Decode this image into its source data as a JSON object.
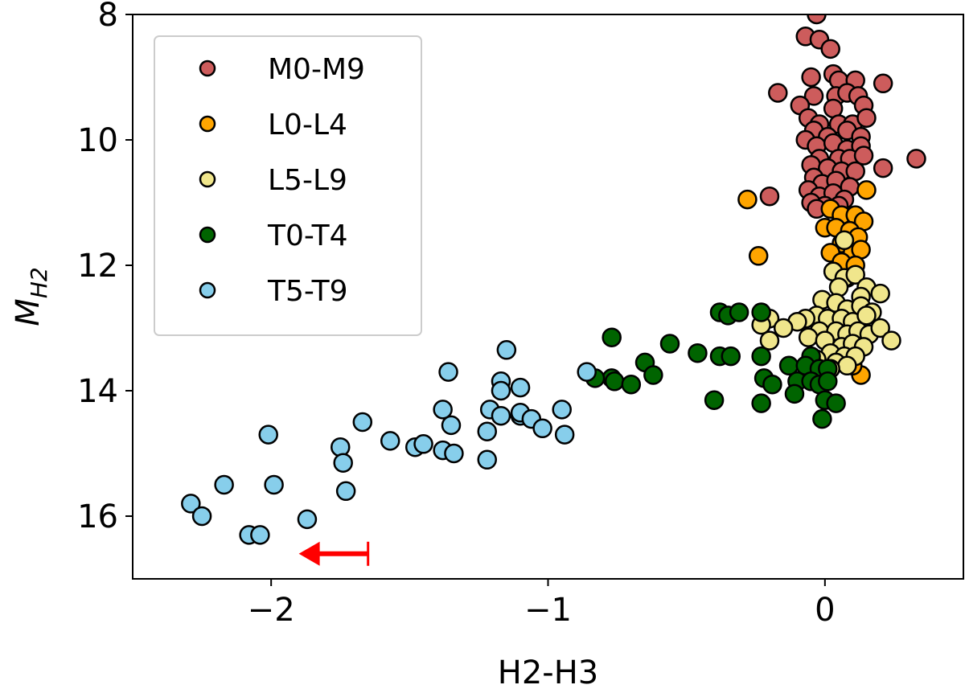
{
  "chart_data": {
    "type": "scatter",
    "title": "",
    "xlabel": "H2-H3",
    "ylabel": "M",
    "ylabel_sub": "H2",
    "xlim": [
      -2.5,
      0.5
    ],
    "ylim": [
      17,
      8
    ],
    "x_ticks": [
      {
        "value": -2,
        "label": "−2"
      },
      {
        "value": -1,
        "label": "−1"
      },
      {
        "value": 0,
        "label": "0"
      }
    ],
    "y_ticks": [
      {
        "value": 8,
        "label": "8"
      },
      {
        "value": 10,
        "label": "10"
      },
      {
        "value": 12,
        "label": "12"
      },
      {
        "value": 14,
        "label": "14"
      },
      {
        "value": 16,
        "label": "16"
      }
    ],
    "legend_position": "top-left",
    "series": [
      {
        "name": "M0-M9",
        "color": "#cd5c5c",
        "points": [
          [
            -0.03,
            8.0
          ],
          [
            -0.07,
            8.35
          ],
          [
            -0.02,
            8.4
          ],
          [
            0.02,
            8.55
          ],
          [
            0.03,
            8.95
          ],
          [
            -0.05,
            9.0
          ],
          [
            0.05,
            9.05
          ],
          [
            0.11,
            9.05
          ],
          [
            0.21,
            9.1
          ],
          [
            -0.17,
            9.25
          ],
          [
            -0.04,
            9.3
          ],
          [
            0.04,
            9.3
          ],
          [
            0.08,
            9.25
          ],
          [
            0.12,
            9.3
          ],
          [
            0.14,
            9.45
          ],
          [
            -0.09,
            9.45
          ],
          [
            0.03,
            9.5
          ],
          [
            -0.06,
            9.65
          ],
          [
            -0.02,
            9.75
          ],
          [
            0.05,
            9.75
          ],
          [
            0.1,
            9.75
          ],
          [
            0.15,
            9.65
          ],
          [
            -0.04,
            9.85
          ],
          [
            0.01,
            9.95
          ],
          [
            0.08,
            9.85
          ],
          [
            0.13,
            9.95
          ],
          [
            -0.07,
            10.0
          ],
          [
            -0.03,
            10.1
          ],
          [
            0.03,
            10.05
          ],
          [
            0.08,
            10.15
          ],
          [
            0.13,
            10.1
          ],
          [
            -0.02,
            10.3
          ],
          [
            0.05,
            10.3
          ],
          [
            0.09,
            10.3
          ],
          [
            0.14,
            10.25
          ],
          [
            0.33,
            10.3
          ],
          [
            0.21,
            10.45
          ],
          [
            -0.05,
            10.4
          ],
          [
            0.01,
            10.45
          ],
          [
            0.06,
            10.5
          ],
          [
            0.11,
            10.5
          ],
          [
            -0.04,
            10.6
          ],
          [
            -0.01,
            10.7
          ],
          [
            0.04,
            10.65
          ],
          [
            0.09,
            10.75
          ],
          [
            -0.06,
            10.8
          ],
          [
            -0.02,
            10.9
          ],
          [
            0.03,
            10.85
          ],
          [
            0.07,
            10.95
          ],
          [
            -0.2,
            10.9
          ],
          [
            -0.05,
            11.0
          ],
          [
            0.0,
            11.05
          ],
          [
            -0.03,
            11.1
          ],
          [
            0.05,
            11.05
          ]
        ]
      },
      {
        "name": "L0-L4",
        "color": "#ffa500",
        "points": [
          [
            -0.28,
            10.95
          ],
          [
            0.15,
            10.8
          ],
          [
            0.02,
            11.1
          ],
          [
            0.06,
            11.2
          ],
          [
            0.11,
            11.2
          ],
          [
            0.14,
            11.3
          ],
          [
            0.0,
            11.4
          ],
          [
            0.04,
            11.4
          ],
          [
            0.09,
            11.45
          ],
          [
            0.12,
            11.55
          ],
          [
            0.06,
            11.65
          ],
          [
            0.02,
            11.8
          ],
          [
            0.1,
            11.8
          ],
          [
            0.13,
            11.75
          ],
          [
            -0.24,
            11.85
          ],
          [
            0.06,
            11.95
          ],
          [
            0.11,
            12.0
          ],
          [
            0.03,
            12.1
          ],
          [
            0.08,
            12.2
          ],
          [
            0.13,
            13.75
          ],
          [
            0.1,
            13.6
          ]
        ]
      },
      {
        "name": "L5-L9",
        "color": "#f0e68c",
        "points": [
          [
            0.07,
            11.6
          ],
          [
            0.03,
            12.1
          ],
          [
            0.07,
            12.2
          ],
          [
            0.11,
            12.15
          ],
          [
            0.05,
            12.35
          ],
          [
            0.15,
            12.35
          ],
          [
            0.2,
            12.45
          ],
          [
            0.13,
            12.5
          ],
          [
            -0.01,
            12.55
          ],
          [
            0.04,
            12.6
          ],
          [
            0.08,
            12.7
          ],
          [
            0.13,
            12.65
          ],
          [
            0.17,
            12.75
          ],
          [
            -0.03,
            12.8
          ],
          [
            0.01,
            12.85
          ],
          [
            0.06,
            12.85
          ],
          [
            0.1,
            12.9
          ],
          [
            0.15,
            12.8
          ],
          [
            -0.07,
            12.85
          ],
          [
            -0.1,
            12.9
          ],
          [
            -0.2,
            12.85
          ],
          [
            -0.23,
            12.95
          ],
          [
            -0.15,
            13.0
          ],
          [
            -0.02,
            13.05
          ],
          [
            0.04,
            13.05
          ],
          [
            0.08,
            13.1
          ],
          [
            0.12,
            13.05
          ],
          [
            0.16,
            13.1
          ],
          [
            0.2,
            13.0
          ],
          [
            0.24,
            13.2
          ],
          [
            -0.06,
            13.15
          ],
          [
            0.0,
            13.2
          ],
          [
            0.06,
            13.3
          ],
          [
            0.1,
            13.25
          ],
          [
            0.14,
            13.3
          ],
          [
            -0.2,
            13.2
          ],
          [
            0.02,
            13.4
          ],
          [
            0.07,
            13.45
          ],
          [
            0.11,
            13.45
          ],
          [
            -0.03,
            13.5
          ],
          [
            0.04,
            13.55
          ],
          [
            0.08,
            13.6
          ],
          [
            -0.04,
            13.6
          ],
          [
            0.02,
            13.65
          ]
        ]
      },
      {
        "name": "T0-T4",
        "color": "#006400",
        "points": [
          [
            -0.38,
            12.75
          ],
          [
            -0.35,
            12.8
          ],
          [
            -0.31,
            12.75
          ],
          [
            -0.23,
            12.75
          ],
          [
            -0.77,
            13.15
          ],
          [
            -0.56,
            13.25
          ],
          [
            -0.46,
            13.4
          ],
          [
            -0.38,
            13.45
          ],
          [
            -0.34,
            13.45
          ],
          [
            -0.23,
            13.45
          ],
          [
            -0.05,
            13.45
          ],
          [
            -0.65,
            13.55
          ],
          [
            -0.13,
            13.6
          ],
          [
            -0.07,
            13.6
          ],
          [
            -0.02,
            13.65
          ],
          [
            0.01,
            13.65
          ],
          [
            -0.62,
            13.75
          ],
          [
            -0.22,
            13.8
          ],
          [
            -0.77,
            13.8
          ],
          [
            -0.76,
            13.85
          ],
          [
            -0.83,
            13.8
          ],
          [
            -0.7,
            13.9
          ],
          [
            -0.19,
            13.9
          ],
          [
            -0.1,
            13.85
          ],
          [
            -0.05,
            13.85
          ],
          [
            -0.02,
            13.9
          ],
          [
            0.01,
            13.85
          ],
          [
            -0.11,
            14.05
          ],
          [
            -0.4,
            14.15
          ],
          [
            -0.23,
            14.2
          ],
          [
            0.0,
            14.15
          ],
          [
            0.04,
            14.2
          ],
          [
            -0.01,
            14.45
          ]
        ]
      },
      {
        "name": "T5-T9",
        "color": "#87ceeb",
        "points": [
          [
            -1.15,
            13.35
          ],
          [
            -1.36,
            13.7
          ],
          [
            -0.86,
            13.7
          ],
          [
            -1.17,
            13.85
          ],
          [
            -1.1,
            13.95
          ],
          [
            -1.17,
            14.0
          ],
          [
            -1.38,
            14.3
          ],
          [
            -1.21,
            14.3
          ],
          [
            -1.17,
            14.4
          ],
          [
            -1.1,
            14.4
          ],
          [
            -1.1,
            14.35
          ],
          [
            -1.06,
            14.45
          ],
          [
            -0.95,
            14.3
          ],
          [
            -1.35,
            14.55
          ],
          [
            -1.22,
            14.65
          ],
          [
            -1.02,
            14.6
          ],
          [
            -0.94,
            14.7
          ],
          [
            -1.67,
            14.5
          ],
          [
            -2.01,
            14.7
          ],
          [
            -1.57,
            14.8
          ],
          [
            -1.48,
            14.9
          ],
          [
            -1.45,
            14.85
          ],
          [
            -1.75,
            14.9
          ],
          [
            -1.38,
            14.95
          ],
          [
            -1.34,
            15.0
          ],
          [
            -1.74,
            15.15
          ],
          [
            -1.22,
            15.1
          ],
          [
            -2.17,
            15.5
          ],
          [
            -1.99,
            15.5
          ],
          [
            -1.73,
            15.6
          ],
          [
            -2.29,
            15.8
          ],
          [
            -2.25,
            16.0
          ],
          [
            -1.87,
            16.05
          ],
          [
            -2.08,
            16.3
          ],
          [
            -2.04,
            16.3
          ]
        ]
      }
    ],
    "annotation": {
      "type": "upper-limit-arrow",
      "color": "#ff0000",
      "y": 16.6,
      "x_start": -1.65,
      "x_end": -1.9
    }
  }
}
